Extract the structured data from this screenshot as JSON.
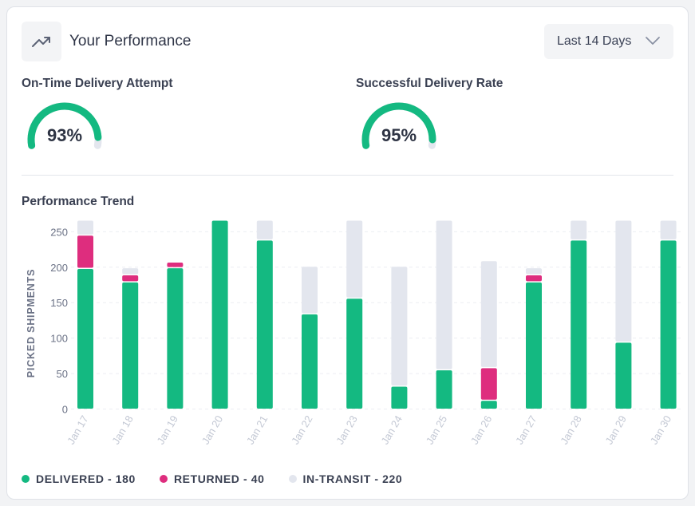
{
  "header": {
    "title": "Your Performance",
    "icon": "trending-up-icon",
    "range_label": "Last 14 Days"
  },
  "metrics": [
    {
      "label": "On-Time Delivery Attempt",
      "value_text": "93%",
      "value": 0.93
    },
    {
      "label": "Successful Delivery Rate",
      "value_text": "95%",
      "value": 0.95
    }
  ],
  "trend": {
    "title": "Performance Trend"
  },
  "legend": [
    {
      "text": "DELIVERED - 180"
    },
    {
      "text": "RETURNED - 40"
    },
    {
      "text": "IN-TRANSIT - 220"
    }
  ],
  "colors": {
    "delivered": "#14b981",
    "returned": "#de2d7e",
    "in_transit": "#e3e6ee",
    "axis_text": "#6b7286",
    "tick_label": "#c3c8d4"
  },
  "chart_data": {
    "type": "bar",
    "stacked": true,
    "ylabel": "PICKED SHIPMENTS",
    "ylim": [
      0,
      260
    ],
    "yticks": [
      0,
      50,
      100,
      150,
      200,
      250
    ],
    "grid": true,
    "categories": [
      "Jan 17",
      "Jan 18",
      "Jan 19",
      "Jan 20",
      "Jan 21",
      "Jan 22",
      "Jan 23",
      "Jan 24",
      "Jan 25",
      "Jan 26",
      "Jan 27",
      "Jan 28",
      "Jan 29",
      "Jan 30"
    ],
    "series": [
      {
        "name": "DELIVERED",
        "values": [
          197,
          178,
          198,
          265,
          237,
          133,
          155,
          31,
          54,
          11,
          178,
          237,
          93,
          237
        ]
      },
      {
        "name": "RETURNED",
        "values": [
          47,
          10,
          8,
          0,
          0,
          0,
          0,
          0,
          0,
          46,
          10,
          0,
          0,
          0
        ]
      },
      {
        "name": "IN-TRANSIT",
        "values": [
          21,
          10,
          0,
          0,
          28,
          67,
          110,
          169,
          211,
          151,
          10,
          28,
          172,
          28
        ]
      }
    ]
  }
}
